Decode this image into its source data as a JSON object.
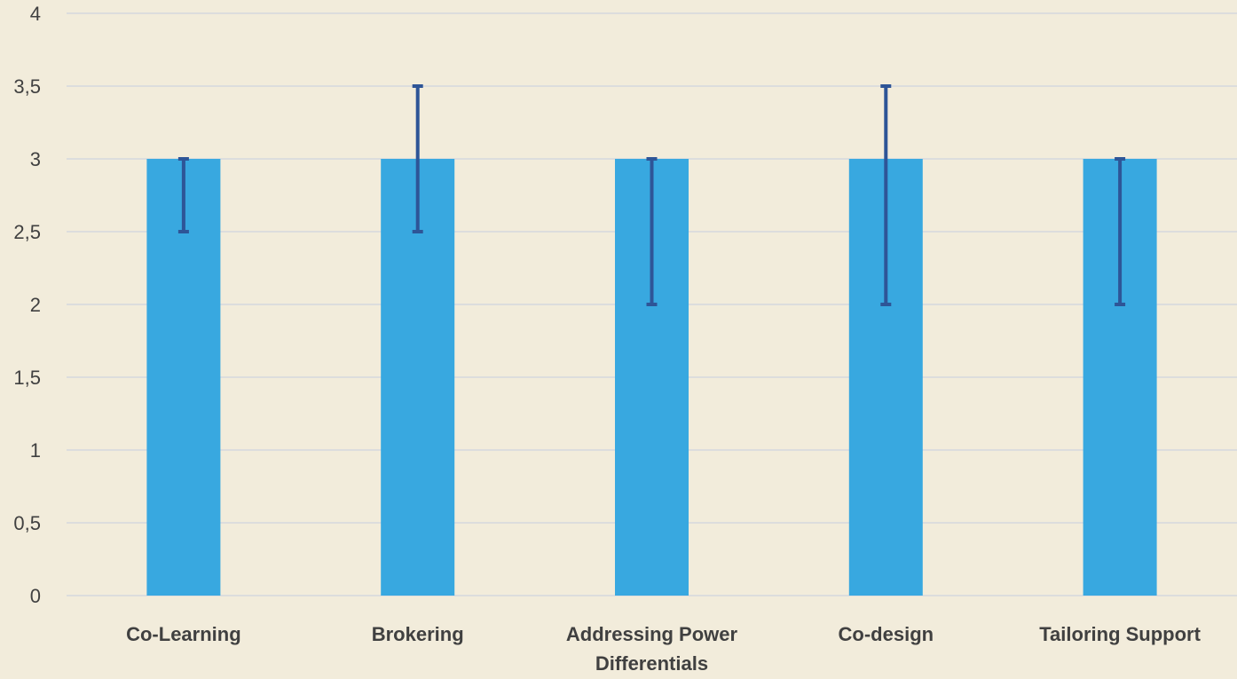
{
  "chart_data": {
    "type": "bar",
    "title": "",
    "xlabel": "",
    "ylabel": "",
    "ylim": [
      0,
      4
    ],
    "yticks": [
      0,
      0.5,
      1,
      1.5,
      2,
      2.5,
      3,
      3.5,
      4
    ],
    "ytick_labels": [
      "0",
      "0,5",
      "1",
      "1,5",
      "2",
      "2,5",
      "3",
      "3,5",
      "4"
    ],
    "grid": true,
    "legend": "none",
    "categories": [
      "Co-Learning",
      "Brokering",
      "Addressing Power Differentials",
      "Co-design",
      "Tailoring Support"
    ],
    "category_label_lines": [
      [
        "Co-Learning"
      ],
      [
        "Brokering"
      ],
      [
        "Addressing Power",
        "Differentials"
      ],
      [
        "Co-design"
      ],
      [
        "Tailoring Support"
      ]
    ],
    "values": [
      3,
      3,
      3,
      3,
      3
    ],
    "error_low": [
      2.5,
      2.5,
      2,
      2,
      2
    ],
    "error_high": [
      3,
      3.5,
      3,
      3.5,
      3
    ],
    "colors": {
      "bar": "#38a8e0",
      "error_bar": "#2e5597",
      "background": "#f2ecdb",
      "gridline": "#d4d8de",
      "text": "#404040"
    }
  }
}
